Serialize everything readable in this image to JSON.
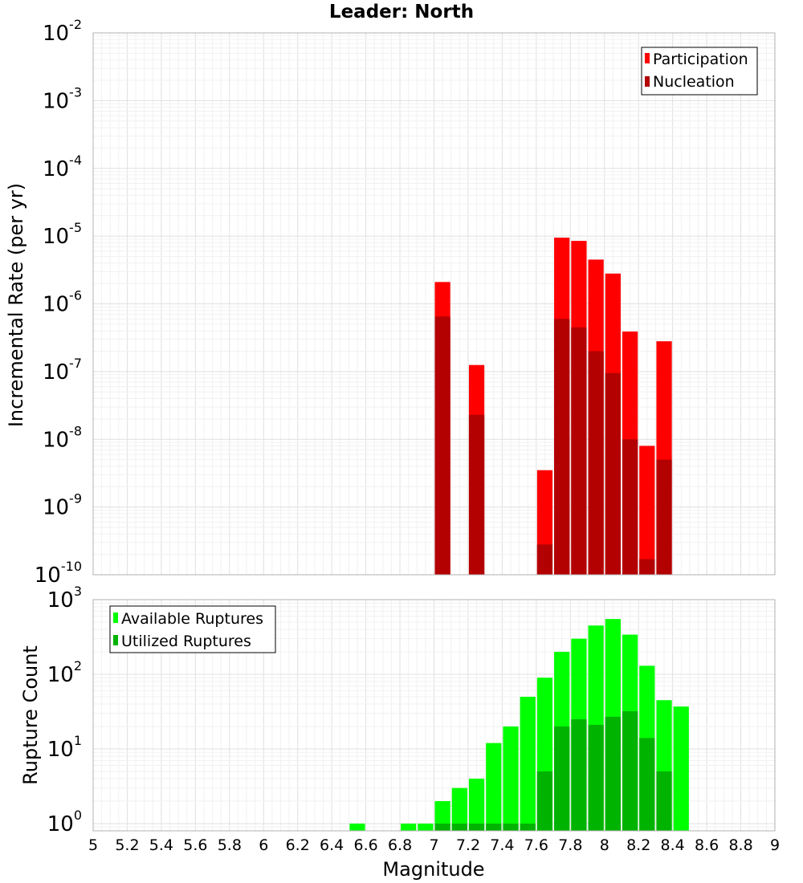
{
  "title": "Leader: North",
  "colors": {
    "participation": "#ff0000",
    "nucleation": "#b30000",
    "available": "#00ff00",
    "utilized": "#00b300",
    "grid": "#e6e6e6",
    "frame": "#b0b0b0"
  },
  "chart_data": [
    {
      "type": "bar",
      "panel": "top",
      "title": "Leader: North",
      "xlabel": "Magnitude",
      "ylabel": "Incremental Rate (per yr)",
      "yscale": "log",
      "xlim": [
        5,
        9
      ],
      "ylim": [
        1e-10,
        0.01
      ],
      "bin_width": 0.1,
      "grid": true,
      "legend_position": "top-right",
      "y_ticks": [
        {
          "base": "10",
          "exp": "-10"
        },
        {
          "base": "10",
          "exp": "-9"
        },
        {
          "base": "10",
          "exp": "-8"
        },
        {
          "base": "10",
          "exp": "-7"
        },
        {
          "base": "10",
          "exp": "-6"
        },
        {
          "base": "10",
          "exp": "-5"
        },
        {
          "base": "10",
          "exp": "-4"
        },
        {
          "base": "10",
          "exp": "-3"
        },
        {
          "base": "10",
          "exp": "-2"
        }
      ],
      "series": [
        {
          "name": "Participation",
          "color": "#ff0000",
          "points": [
            {
              "x": 7.05,
              "y": 2.1e-06
            },
            {
              "x": 7.25,
              "y": 1.25e-07
            },
            {
              "x": 7.65,
              "y": 3.5e-09
            },
            {
              "x": 7.75,
              "y": 9.5e-06
            },
            {
              "x": 7.85,
              "y": 8.5e-06
            },
            {
              "x": 7.95,
              "y": 4.5e-06
            },
            {
              "x": 8.05,
              "y": 2.8e-06
            },
            {
              "x": 8.15,
              "y": 3.9e-07
            },
            {
              "x": 8.25,
              "y": 8e-09
            },
            {
              "x": 8.35,
              "y": 2.8e-07
            }
          ]
        },
        {
          "name": "Nucleation",
          "color": "#b30000",
          "points": [
            {
              "x": 7.05,
              "y": 6.5e-07
            },
            {
              "x": 7.25,
              "y": 2.3e-08
            },
            {
              "x": 7.65,
              "y": 2.8e-10
            },
            {
              "x": 7.75,
              "y": 6e-07
            },
            {
              "x": 7.85,
              "y": 4.5e-07
            },
            {
              "x": 7.95,
              "y": 2e-07
            },
            {
              "x": 8.05,
              "y": 9.5e-08
            },
            {
              "x": 8.15,
              "y": 1e-08
            },
            {
              "x": 8.25,
              "y": 1.7e-10
            },
            {
              "x": 8.35,
              "y": 5e-09
            }
          ]
        }
      ]
    },
    {
      "type": "bar",
      "panel": "bottom",
      "xlabel": "Magnitude",
      "ylabel": "Rupture Count",
      "yscale": "log",
      "xlim": [
        5,
        9
      ],
      "ylim": [
        0.8,
        1000
      ],
      "bin_width": 0.1,
      "grid": true,
      "legend_position": "top-left",
      "x_ticks": [
        "5",
        "5.2",
        "5.4",
        "5.6",
        "5.8",
        "6",
        "6.2",
        "6.4",
        "6.6",
        "6.8",
        "7",
        "7.2",
        "7.4",
        "7.6",
        "7.8",
        "8",
        "8.2",
        "8.4",
        "8.6",
        "8.8",
        "9"
      ],
      "y_ticks": [
        {
          "base": "10",
          "exp": "0"
        },
        {
          "base": "10",
          "exp": "1"
        },
        {
          "base": "10",
          "exp": "2"
        },
        {
          "base": "10",
          "exp": "3"
        }
      ],
      "series": [
        {
          "name": "Available Ruptures",
          "color": "#00ff00",
          "points": [
            {
              "x": 6.55,
              "y": 1
            },
            {
              "x": 6.85,
              "y": 1
            },
            {
              "x": 6.95,
              "y": 1
            },
            {
              "x": 7.05,
              "y": 2
            },
            {
              "x": 7.15,
              "y": 3
            },
            {
              "x": 7.25,
              "y": 4
            },
            {
              "x": 7.35,
              "y": 12
            },
            {
              "x": 7.45,
              "y": 20
            },
            {
              "x": 7.55,
              "y": 50
            },
            {
              "x": 7.65,
              "y": 90
            },
            {
              "x": 7.75,
              "y": 200
            },
            {
              "x": 7.85,
              "y": 300
            },
            {
              "x": 7.95,
              "y": 450
            },
            {
              "x": 8.05,
              "y": 550
            },
            {
              "x": 8.15,
              "y": 340
            },
            {
              "x": 8.25,
              "y": 130
            },
            {
              "x": 8.35,
              "y": 45
            },
            {
              "x": 8.45,
              "y": 37
            }
          ]
        },
        {
          "name": "Utilized Ruptures",
          "color": "#00b300",
          "points": [
            {
              "x": 7.05,
              "y": 1
            },
            {
              "x": 7.15,
              "y": 1
            },
            {
              "x": 7.25,
              "y": 1
            },
            {
              "x": 7.35,
              "y": 1
            },
            {
              "x": 7.45,
              "y": 1
            },
            {
              "x": 7.55,
              "y": 1
            },
            {
              "x": 7.65,
              "y": 5
            },
            {
              "x": 7.75,
              "y": 20
            },
            {
              "x": 7.85,
              "y": 25
            },
            {
              "x": 7.95,
              "y": 21
            },
            {
              "x": 8.05,
              "y": 27
            },
            {
              "x": 8.15,
              "y": 32
            },
            {
              "x": 8.25,
              "y": 14
            },
            {
              "x": 8.35,
              "y": 5
            }
          ]
        }
      ]
    }
  ]
}
